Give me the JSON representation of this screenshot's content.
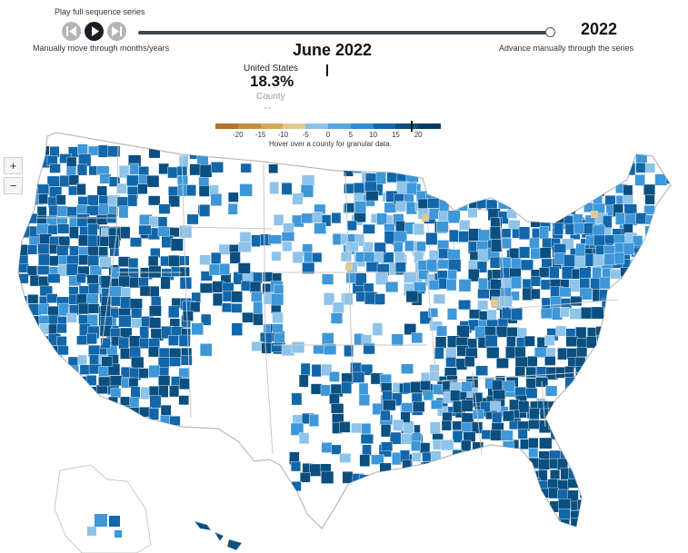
{
  "controls": {
    "play_label": "Play full sequence series",
    "manual_label": "Manually move through months/years",
    "advance_label": "Advance manually through the series",
    "year": "2022",
    "slider_position": 1.0
  },
  "title": "June 2022",
  "summary": {
    "region_name": "United States",
    "region_value": "18.3%",
    "county_label": "County",
    "county_value": "--"
  },
  "legend": {
    "ticks": [
      "-20",
      "-15",
      "-10",
      "-5",
      "0",
      "5",
      "10",
      "15",
      "20"
    ],
    "colors": [
      "#b0742c",
      "#c48e3c",
      "#d6aa5a",
      "#e4c98e",
      "#8ec3ea",
      "#5aa6df",
      "#2f8ed4",
      "#1266aa",
      "#0a4f80",
      "#053a60"
    ],
    "marker_value": 18.3,
    "note": "Hover over a county for granular data."
  },
  "zoom": {
    "in_label": "+",
    "out_label": "−"
  },
  "map": {
    "land_color": "#ffffff",
    "border_color": "#c8c8c8",
    "palette": {
      "light": "#8ec3ea",
      "mid": "#3d97d8",
      "dark": "#1266aa",
      "darkest": "#0a4f80",
      "tan": "#e4c98e"
    }
  }
}
